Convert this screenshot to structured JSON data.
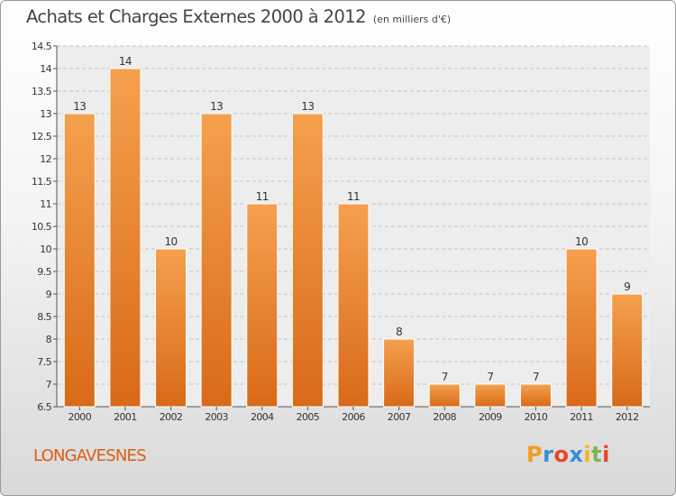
{
  "chart_data": {
    "type": "bar",
    "title": "Achats et Charges Externes 2000 à 2012",
    "subtitle": "(en milliers d'€)",
    "categories": [
      "2000",
      "2001",
      "2002",
      "2003",
      "2004",
      "2005",
      "2006",
      "2007",
      "2008",
      "2009",
      "2010",
      "2011",
      "2012"
    ],
    "values": [
      13,
      14,
      10,
      13,
      11,
      13,
      11,
      8,
      7,
      7,
      7,
      10,
      9
    ],
    "ylim": [
      6.5,
      14.5
    ],
    "yticks": [
      "6.5",
      "7",
      "7.5",
      "8",
      "8.5",
      "9",
      "9.5",
      "10",
      "10.5",
      "11",
      "11.5",
      "12",
      "12.5",
      "13",
      "13.5",
      "14",
      "14.5"
    ],
    "grid": "horizontal",
    "bar_color_light": "#f5a04e",
    "bar_color_dark": "#d86a18"
  },
  "footer": {
    "commune": "LONGAVESNES",
    "brand_letters": [
      "P",
      "r",
      "o",
      "x",
      "i",
      "t",
      "i"
    ]
  }
}
